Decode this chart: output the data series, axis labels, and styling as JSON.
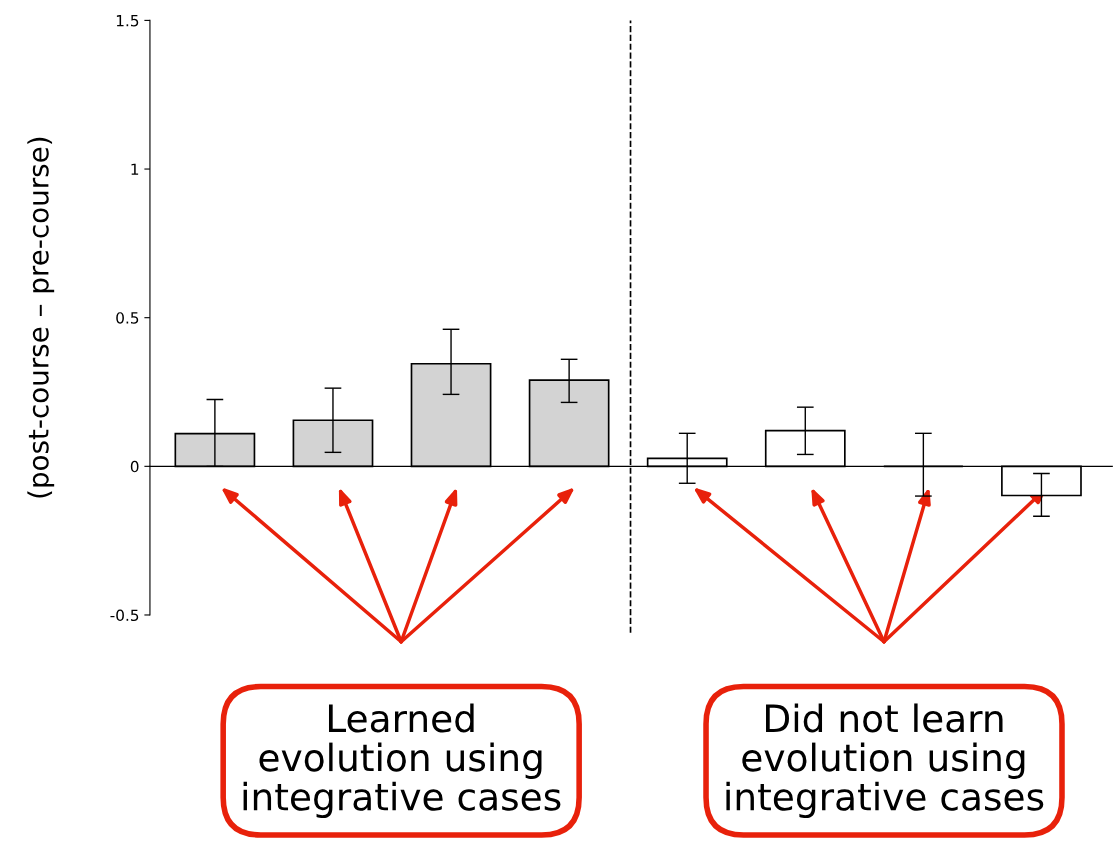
{
  "chart_data": {
    "type": "bar",
    "ylabel": "(post-course – pre-course)",
    "categories": [
      null,
      null,
      null,
      null,
      null,
      null,
      null,
      null
    ],
    "values": [
      0.11,
      0.155,
      0.345,
      0.29,
      0.027,
      0.12,
      0,
      -0.098
    ],
    "colors": [
      "#d3d3d3",
      "#d3d3d3",
      "#d3d3d3",
      "#d3d3d3",
      "#ffffff",
      "#ffffff",
      "#000000",
      "#ffffff"
    ],
    "errors": [
      [
        0.0,
        0.225
      ],
      [
        0.047,
        0.263
      ],
      [
        0.242,
        0.461
      ],
      [
        0.215,
        0.36
      ],
      [
        -0.057,
        0.111
      ],
      [
        0.04,
        0.199
      ],
      [
        -0.1,
        0.111
      ],
      [
        -0.168,
        -0.024
      ]
    ],
    "ylim": [
      -0.5,
      1.5
    ],
    "yticks": [
      -0.5,
      0,
      0.5,
      1,
      1.5
    ],
    "annotations": [
      "Learned\nevolution using\nintegrative cases",
      "Did not learn\nevolution using\nintegrative cases"
    ],
    "grid": false,
    "legend": false
  }
}
